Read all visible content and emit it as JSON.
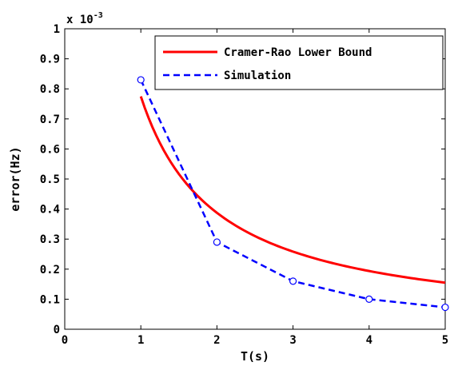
{
  "chart_data": {
    "type": "line",
    "xlabel": "T(s)",
    "ylabel": "error(Hz)",
    "x_ticks": [
      "0",
      "1",
      "2",
      "3",
      "4",
      "5"
    ],
    "y_ticks": [
      "0",
      "0.1",
      "0.2",
      "0.3",
      "0.4",
      "0.5",
      "0.6",
      "0.7",
      "0.8",
      "0.9",
      "1"
    ],
    "xlim": [
      0,
      5
    ],
    "ylim": [
      0,
      1
    ],
    "y_multiplier": {
      "base": "x 10",
      "exponent": "-3"
    },
    "grid": false,
    "legend_position": "top-right",
    "series": [
      {
        "name": "Cramer-Rao Lower Bound",
        "color": "#ff0000",
        "style": "solid",
        "curve": "c / T",
        "x": [
          1,
          1.25,
          1.5,
          1.75,
          2,
          2.5,
          3,
          3.5,
          4,
          4.5,
          5
        ],
        "y": [
          0.775,
          0.62,
          0.517,
          0.443,
          0.388,
          0.31,
          0.258,
          0.221,
          0.194,
          0.172,
          0.155
        ]
      },
      {
        "name": "Simulation",
        "color": "#0000ff",
        "style": "dashed",
        "marker": "circle",
        "x": [
          1,
          2,
          3,
          4,
          5
        ],
        "y": [
          0.83,
          0.29,
          0.16,
          0.1,
          0.073
        ]
      }
    ]
  }
}
